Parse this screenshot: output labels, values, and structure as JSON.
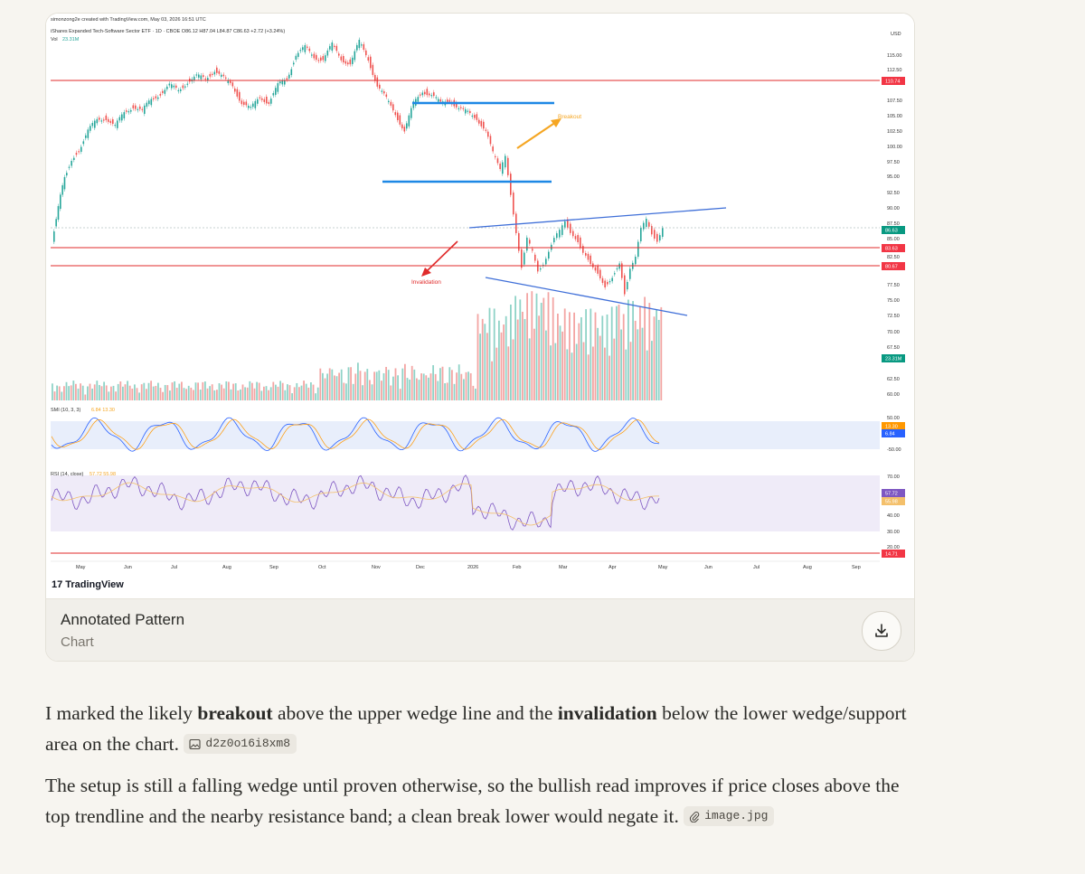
{
  "chart": {
    "header_line": "simonzong2e created with TradingView.com, May 03, 2026 16:51 UTC",
    "symbol_line": "iShares Expanded Tech-Software Sector ETF · 1D · CBOE  O86.12  H87.04  L84.87  C86.63  +2.72 (+3.24%)",
    "vol_label": "Vol",
    "vol_value": "23.31M",
    "currency": "USD",
    "price_ticks": [
      "115.00",
      "112.50",
      "107.50",
      "105.00",
      "102.50",
      "100.00",
      "97.50",
      "95.00",
      "92.50",
      "90.00",
      "87.50",
      "85.00",
      "82.50",
      "77.50",
      "75.00",
      "72.50",
      "70.00",
      "67.50",
      "62.50",
      "60.00"
    ],
    "price_badges": [
      {
        "label": "110.74",
        "color": "#f23645"
      },
      {
        "label": "86.63",
        "color": "#089981"
      },
      {
        "label": "83.63",
        "color": "#f23645"
      },
      {
        "label": "80.67",
        "color": "#f23645"
      },
      {
        "label": "23.31M",
        "color": "#089981"
      }
    ],
    "smi_label": "SMI (10, 3, 3)",
    "smi_values": "6.84  13.30",
    "smi_ticks": [
      "50.00",
      "-50.00"
    ],
    "smi_badges": [
      {
        "label": "13.30",
        "color": "#ff9800"
      },
      {
        "label": "6.84",
        "color": "#2962ff"
      }
    ],
    "rsi_label": "RSI (14, close)",
    "rsi_values": "57.72  55.98",
    "rsi_ticks": [
      "70.00",
      "40.00",
      "30.00",
      "20.00"
    ],
    "rsi_badges": [
      {
        "label": "57.72",
        "color": "#7e57c2"
      },
      {
        "label": "55.98",
        "color": "#f4c06b"
      },
      {
        "label": "14.71",
        "color": "#f23645"
      }
    ],
    "months": [
      "May",
      "Jun",
      "Jul",
      "Aug",
      "Sep",
      "Oct",
      "Nov",
      "Dec",
      "2026",
      "Feb",
      "Mar",
      "Apr",
      "May",
      "Jun",
      "Jul",
      "Aug",
      "Sep"
    ],
    "annotation_breakout": "Breakout",
    "annotation_invalidation": "Invalidation",
    "logo_text": "TradingView",
    "colors": {
      "up": "#26a69a",
      "down": "#ef5350",
      "resistance": "#e02b2b",
      "box": "#1e88e5",
      "wedge": "#3f6fd8",
      "breakout": "#f5a623",
      "invalidation": "#e02b2b"
    }
  },
  "card": {
    "title": "Annotated Pattern",
    "subtitle": "Chart",
    "download_icon": "download-icon"
  },
  "message": {
    "p1_a": "I marked the likely ",
    "p1_b": "breakout",
    "p1_c": " above the upper wedge line and the ",
    "p1_d": "invalidation",
    "p1_e": " below the lower wedge/support area on the chart.",
    "chip1": "d2z0o16i8xm8",
    "p2": "The setup is still a falling wedge until proven otherwise, so the bullish read improves if price closes above the top trendline and the nearby resistance band; a clean break lower would negate it.",
    "chip2": "image.jpg"
  }
}
